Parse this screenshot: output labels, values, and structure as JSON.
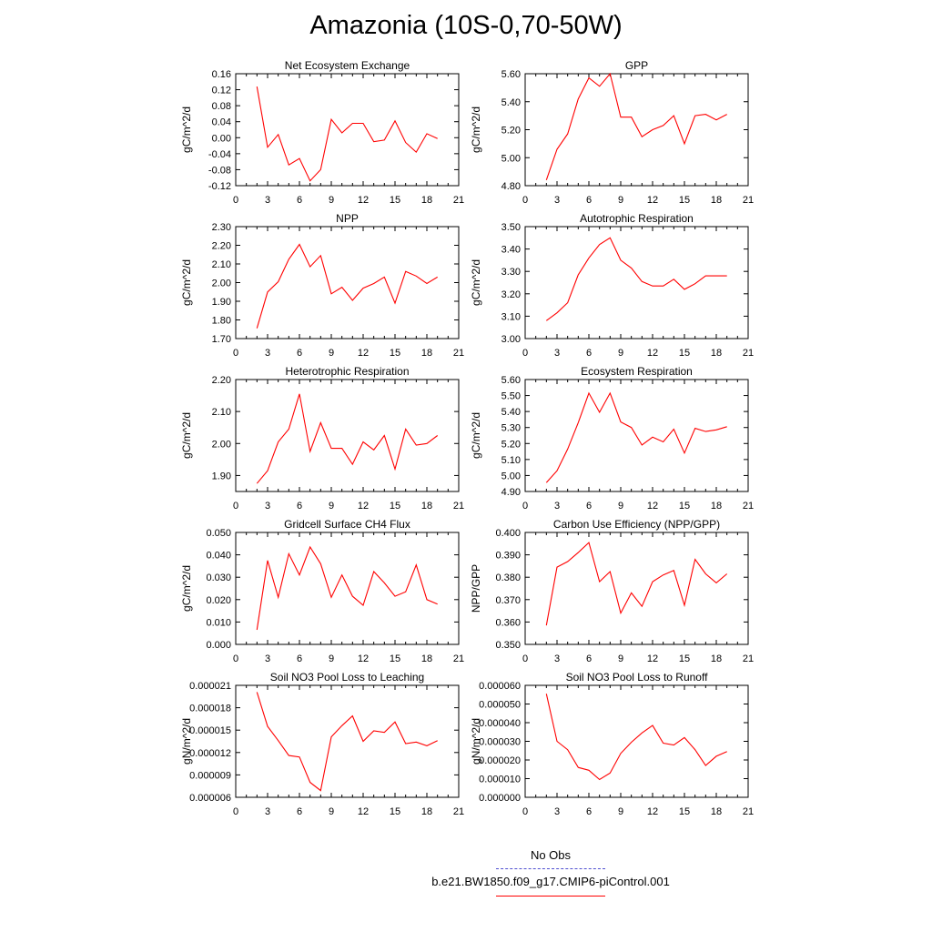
{
  "title": "Amazonia (10S-0,70-50W)",
  "legend": {
    "obs_label": "No Obs",
    "model_label": "b.e21.BW1850.f09_g17.CMIP6-piControl.001",
    "obs_color": "#4f4fd0",
    "model_color": "#ff0000"
  },
  "chart_data": [
    {
      "type": "line",
      "title": "Net Ecosystem Exchange",
      "ylabel": "gC/m^2/d",
      "xlim": [
        0,
        21
      ],
      "ylim": [
        -0.12,
        0.16
      ],
      "xticks": [
        0,
        3,
        6,
        9,
        12,
        15,
        18,
        21
      ],
      "yticks": [
        -0.12,
        -0.08,
        -0.04,
        0.0,
        0.04,
        0.08,
        0.12,
        0.16
      ],
      "ytick_labels": [
        "-0.12",
        "-0.08",
        "-0.04",
        "0.00",
        "0.04",
        "0.08",
        "0.12",
        "0.16"
      ],
      "x": [
        2,
        3,
        4,
        5,
        6,
        7,
        8,
        9,
        10,
        11,
        12,
        13,
        14,
        15,
        16,
        17,
        18,
        19
      ],
      "values": [
        0.128,
        -0.024,
        0.008,
        -0.068,
        -0.052,
        -0.108,
        -0.08,
        0.046,
        0.012,
        0.036,
        0.036,
        -0.01,
        -0.006,
        0.042,
        -0.012,
        -0.036,
        0.01,
        -0.002
      ]
    },
    {
      "type": "line",
      "title": "GPP",
      "ylabel": "gC/m^2/d",
      "xlim": [
        0,
        21
      ],
      "ylim": [
        4.8,
        5.6
      ],
      "xticks": [
        0,
        3,
        6,
        9,
        12,
        15,
        18,
        21
      ],
      "yticks": [
        4.8,
        5.0,
        5.2,
        5.4,
        5.6
      ],
      "ytick_labels": [
        "4.80",
        "5.00",
        "5.20",
        "5.40",
        "5.60"
      ],
      "x": [
        2,
        3,
        4,
        5,
        6,
        7,
        8,
        9,
        10,
        11,
        12,
        13,
        14,
        15,
        16,
        17,
        18,
        19
      ],
      "values": [
        4.84,
        5.06,
        5.17,
        5.42,
        5.57,
        5.51,
        5.6,
        5.29,
        5.29,
        5.15,
        5.2,
        5.23,
        5.3,
        5.1,
        5.3,
        5.31,
        5.27,
        5.31
      ]
    },
    {
      "type": "line",
      "title": "NPP",
      "ylabel": "gC/m^2/d",
      "xlim": [
        0,
        21
      ],
      "ylim": [
        1.7,
        2.3
      ],
      "xticks": [
        0,
        3,
        6,
        9,
        12,
        15,
        18,
        21
      ],
      "yticks": [
        1.7,
        1.8,
        1.9,
        2.0,
        2.1,
        2.2,
        2.3
      ],
      "ytick_labels": [
        "1.70",
        "1.80",
        "1.90",
        "2.00",
        "2.10",
        "2.20",
        "2.30"
      ],
      "x": [
        2,
        3,
        4,
        5,
        6,
        7,
        8,
        9,
        10,
        11,
        12,
        13,
        14,
        15,
        16,
        17,
        18,
        19
      ],
      "values": [
        1.755,
        1.95,
        2.005,
        2.125,
        2.205,
        2.085,
        2.145,
        1.94,
        1.975,
        1.905,
        1.97,
        1.995,
        2.03,
        1.89,
        2.06,
        2.035,
        1.995,
        2.03
      ]
    },
    {
      "type": "line",
      "title": "Autotrophic Respiration",
      "ylabel": "gC/m^2/d",
      "xlim": [
        0,
        21
      ],
      "ylim": [
        3.0,
        3.5
      ],
      "xticks": [
        0,
        3,
        6,
        9,
        12,
        15,
        18,
        21
      ],
      "yticks": [
        3.0,
        3.1,
        3.2,
        3.3,
        3.4,
        3.5
      ],
      "ytick_labels": [
        "3.00",
        "3.10",
        "3.20",
        "3.30",
        "3.40",
        "3.50"
      ],
      "x": [
        2,
        3,
        4,
        5,
        6,
        7,
        8,
        9,
        10,
        11,
        12,
        13,
        14,
        15,
        16,
        17,
        18,
        19
      ],
      "values": [
        3.08,
        3.115,
        3.16,
        3.285,
        3.36,
        3.42,
        3.45,
        3.35,
        3.315,
        3.255,
        3.235,
        3.235,
        3.265,
        3.22,
        3.245,
        3.28,
        3.28,
        3.28
      ]
    },
    {
      "type": "line",
      "title": "Heterotrophic Respiration",
      "ylabel": "gC/m^2/d",
      "xlim": [
        0,
        21
      ],
      "ylim": [
        1.85,
        2.2
      ],
      "xticks": [
        0,
        3,
        6,
        9,
        12,
        15,
        18,
        21
      ],
      "yticks": [
        1.9,
        2.0,
        2.1,
        2.2
      ],
      "ytick_labels": [
        "1.90",
        "2.00",
        "2.10",
        "2.20"
      ],
      "x": [
        2,
        3,
        4,
        5,
        6,
        7,
        8,
        9,
        10,
        11,
        12,
        13,
        14,
        15,
        16,
        17,
        18,
        19
      ],
      "values": [
        1.875,
        1.915,
        2.005,
        2.045,
        2.155,
        1.975,
        2.065,
        1.985,
        1.985,
        1.935,
        2.005,
        1.98,
        2.025,
        1.92,
        2.045,
        1.995,
        2.0,
        2.025
      ]
    },
    {
      "type": "line",
      "title": "Ecosystem Respiration",
      "ylabel": "gC/m^2/d",
      "xlim": [
        0,
        21
      ],
      "ylim": [
        4.9,
        5.6
      ],
      "xticks": [
        0,
        3,
        6,
        9,
        12,
        15,
        18,
        21
      ],
      "yticks": [
        4.9,
        5.0,
        5.1,
        5.2,
        5.3,
        5.4,
        5.5,
        5.6
      ],
      "ytick_labels": [
        "4.90",
        "5.00",
        "5.10",
        "5.20",
        "5.30",
        "5.40",
        "5.50",
        "5.60"
      ],
      "x": [
        2,
        3,
        4,
        5,
        6,
        7,
        8,
        9,
        10,
        11,
        12,
        13,
        14,
        15,
        16,
        17,
        18,
        19
      ],
      "values": [
        4.955,
        5.03,
        5.165,
        5.33,
        5.515,
        5.395,
        5.515,
        5.335,
        5.3,
        5.19,
        5.24,
        5.21,
        5.29,
        5.14,
        5.295,
        5.275,
        5.285,
        5.305
      ]
    },
    {
      "type": "line",
      "title": "Gridcell Surface CH4 Flux",
      "ylabel": "gC/m^2/d",
      "xlim": [
        0,
        21
      ],
      "ylim": [
        0.0,
        0.05
      ],
      "xticks": [
        0,
        3,
        6,
        9,
        12,
        15,
        18,
        21
      ],
      "yticks": [
        0.0,
        0.01,
        0.02,
        0.03,
        0.04,
        0.05
      ],
      "ytick_labels": [
        "0.000",
        "0.010",
        "0.020",
        "0.030",
        "0.040",
        "0.050"
      ],
      "x": [
        2,
        3,
        4,
        5,
        6,
        7,
        8,
        9,
        10,
        11,
        12,
        13,
        14,
        15,
        16,
        17,
        18,
        19
      ],
      "values": [
        0.0065,
        0.0375,
        0.021,
        0.0405,
        0.031,
        0.0435,
        0.036,
        0.021,
        0.031,
        0.0215,
        0.0175,
        0.0325,
        0.0275,
        0.0215,
        0.0235,
        0.0355,
        0.02,
        0.018
      ]
    },
    {
      "type": "line",
      "title": "Carbon Use Efficiency (NPP/GPP)",
      "ylabel": "NPP/GPP",
      "xlim": [
        0,
        21
      ],
      "ylim": [
        0.35,
        0.4
      ],
      "xticks": [
        0,
        3,
        6,
        9,
        12,
        15,
        18,
        21
      ],
      "yticks": [
        0.35,
        0.36,
        0.37,
        0.38,
        0.39,
        0.4
      ],
      "ytick_labels": [
        "0.350",
        "0.360",
        "0.370",
        "0.380",
        "0.390",
        "0.400"
      ],
      "x": [
        2,
        3,
        4,
        5,
        6,
        7,
        8,
        9,
        10,
        11,
        12,
        13,
        14,
        15,
        16,
        17,
        18,
        19
      ],
      "values": [
        0.3585,
        0.3845,
        0.387,
        0.391,
        0.3955,
        0.378,
        0.3825,
        0.364,
        0.373,
        0.367,
        0.378,
        0.381,
        0.383,
        0.3675,
        0.388,
        0.3815,
        0.3775,
        0.3815
      ]
    },
    {
      "type": "line",
      "title": "Soil NO3 Pool Loss to Leaching",
      "ylabel": "gN/m^2/d",
      "xlim": [
        0,
        21
      ],
      "ylim": [
        6e-06,
        2.1e-05
      ],
      "xticks": [
        0,
        3,
        6,
        9,
        12,
        15,
        18,
        21
      ],
      "yticks": [
        6e-06,
        9e-06,
        1.2e-05,
        1.5e-05,
        1.8e-05,
        2.1e-05
      ],
      "ytick_labels": [
        "0.000006",
        "0.000009",
        "0.000012",
        "0.000015",
        "0.000018",
        "0.000021"
      ],
      "x": [
        2,
        3,
        4,
        5,
        6,
        7,
        8,
        9,
        10,
        11,
        12,
        13,
        14,
        15,
        16,
        17,
        18,
        19
      ],
      "values": [
        2.01e-05,
        1.55e-05,
        1.36e-05,
        1.16e-05,
        1.14e-05,
        8e-06,
        6.9e-06,
        1.41e-05,
        1.56e-05,
        1.69e-05,
        1.35e-05,
        1.49e-05,
        1.47e-05,
        1.61e-05,
        1.32e-05,
        1.34e-05,
        1.29e-05,
        1.36e-05
      ]
    },
    {
      "type": "line",
      "title": "Soil NO3 Pool Loss to Runoff",
      "ylabel": "gN/m^2/d",
      "xlim": [
        0,
        21
      ],
      "ylim": [
        0.0,
        6e-05
      ],
      "xticks": [
        0,
        3,
        6,
        9,
        12,
        15,
        18,
        21
      ],
      "yticks": [
        0.0,
        1e-05,
        2e-05,
        3e-05,
        4e-05,
        5e-05,
        6e-05
      ],
      "ytick_labels": [
        "0.000000",
        "0.000010",
        "0.000020",
        "0.000030",
        "0.000040",
        "0.000050",
        "0.000060"
      ],
      "x": [
        2,
        3,
        4,
        5,
        6,
        7,
        8,
        9,
        10,
        11,
        12,
        13,
        14,
        15,
        16,
        17,
        18,
        19
      ],
      "values": [
        5.55e-05,
        3e-05,
        2.55e-05,
        1.6e-05,
        1.45e-05,
        9.5e-06,
        1.3e-05,
        2.35e-05,
        2.95e-05,
        3.45e-05,
        3.85e-05,
        2.9e-05,
        2.8e-05,
        3.2e-05,
        2.55e-05,
        1.7e-05,
        2.2e-05,
        2.45e-05
      ]
    }
  ]
}
